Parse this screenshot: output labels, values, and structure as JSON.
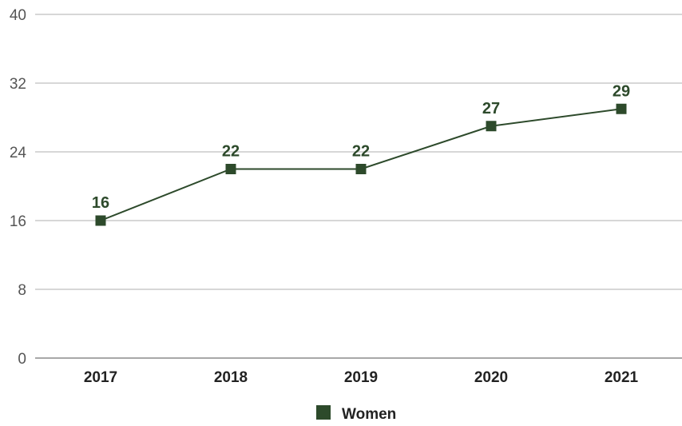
{
  "chart_data": {
    "type": "line",
    "title": "",
    "xlabel": "",
    "ylabel": "",
    "categories": [
      "2017",
      "2018",
      "2019",
      "2020",
      "2021"
    ],
    "ylim": [
      0,
      40
    ],
    "yticks": [
      0,
      8,
      16,
      24,
      32,
      40
    ],
    "grid": true,
    "legend_position": "bottom-center",
    "series": [
      {
        "name": "Women",
        "values": [
          16,
          22,
          22,
          27,
          29
        ],
        "color": "#2d4a2b",
        "marker": "square",
        "data_labels": true
      }
    ]
  }
}
